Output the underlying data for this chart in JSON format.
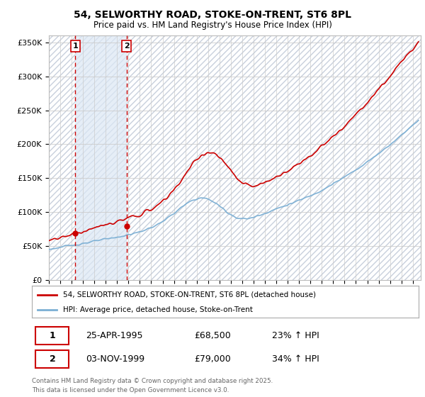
{
  "title": "54, SELWORTHY ROAD, STOKE-ON-TRENT, ST6 8PL",
  "subtitle": "Price paid vs. HM Land Registry's House Price Index (HPI)",
  "ylim": [
    0,
    350000
  ],
  "yticks": [
    0,
    50000,
    100000,
    150000,
    200000,
    250000,
    300000,
    350000
  ],
  "ytick_labels": [
    "£0",
    "£50K",
    "£100K",
    "£150K",
    "£200K",
    "£250K",
    "£300K",
    "£350K"
  ],
  "xmin": 1993,
  "xmax": 2025,
  "legend_line1": "54, SELWORTHY ROAD, STOKE-ON-TRENT, ST6 8PL (detached house)",
  "legend_line2": "HPI: Average price, detached house, Stoke-on-Trent",
  "purchase1_date": "25-APR-1995",
  "purchase1_price": "£68,500",
  "purchase1_hpi": "23% ↑ HPI",
  "purchase1_year": 1995.32,
  "purchase1_value": 68500,
  "purchase2_date": "03-NOV-1999",
  "purchase2_price": "£79,000",
  "purchase2_hpi": "34% ↑ HPI",
  "purchase2_year": 1999.84,
  "purchase2_value": 79000,
  "footer": "Contains HM Land Registry data © Crown copyright and database right 2025.\nThis data is licensed under the Open Government Licence v3.0.",
  "line_color_property": "#cc0000",
  "line_color_hpi": "#7bafd4",
  "vline_color": "#cc0000",
  "hatch_color": "#c8d0dc",
  "fill_between_color": "#dce8f5"
}
